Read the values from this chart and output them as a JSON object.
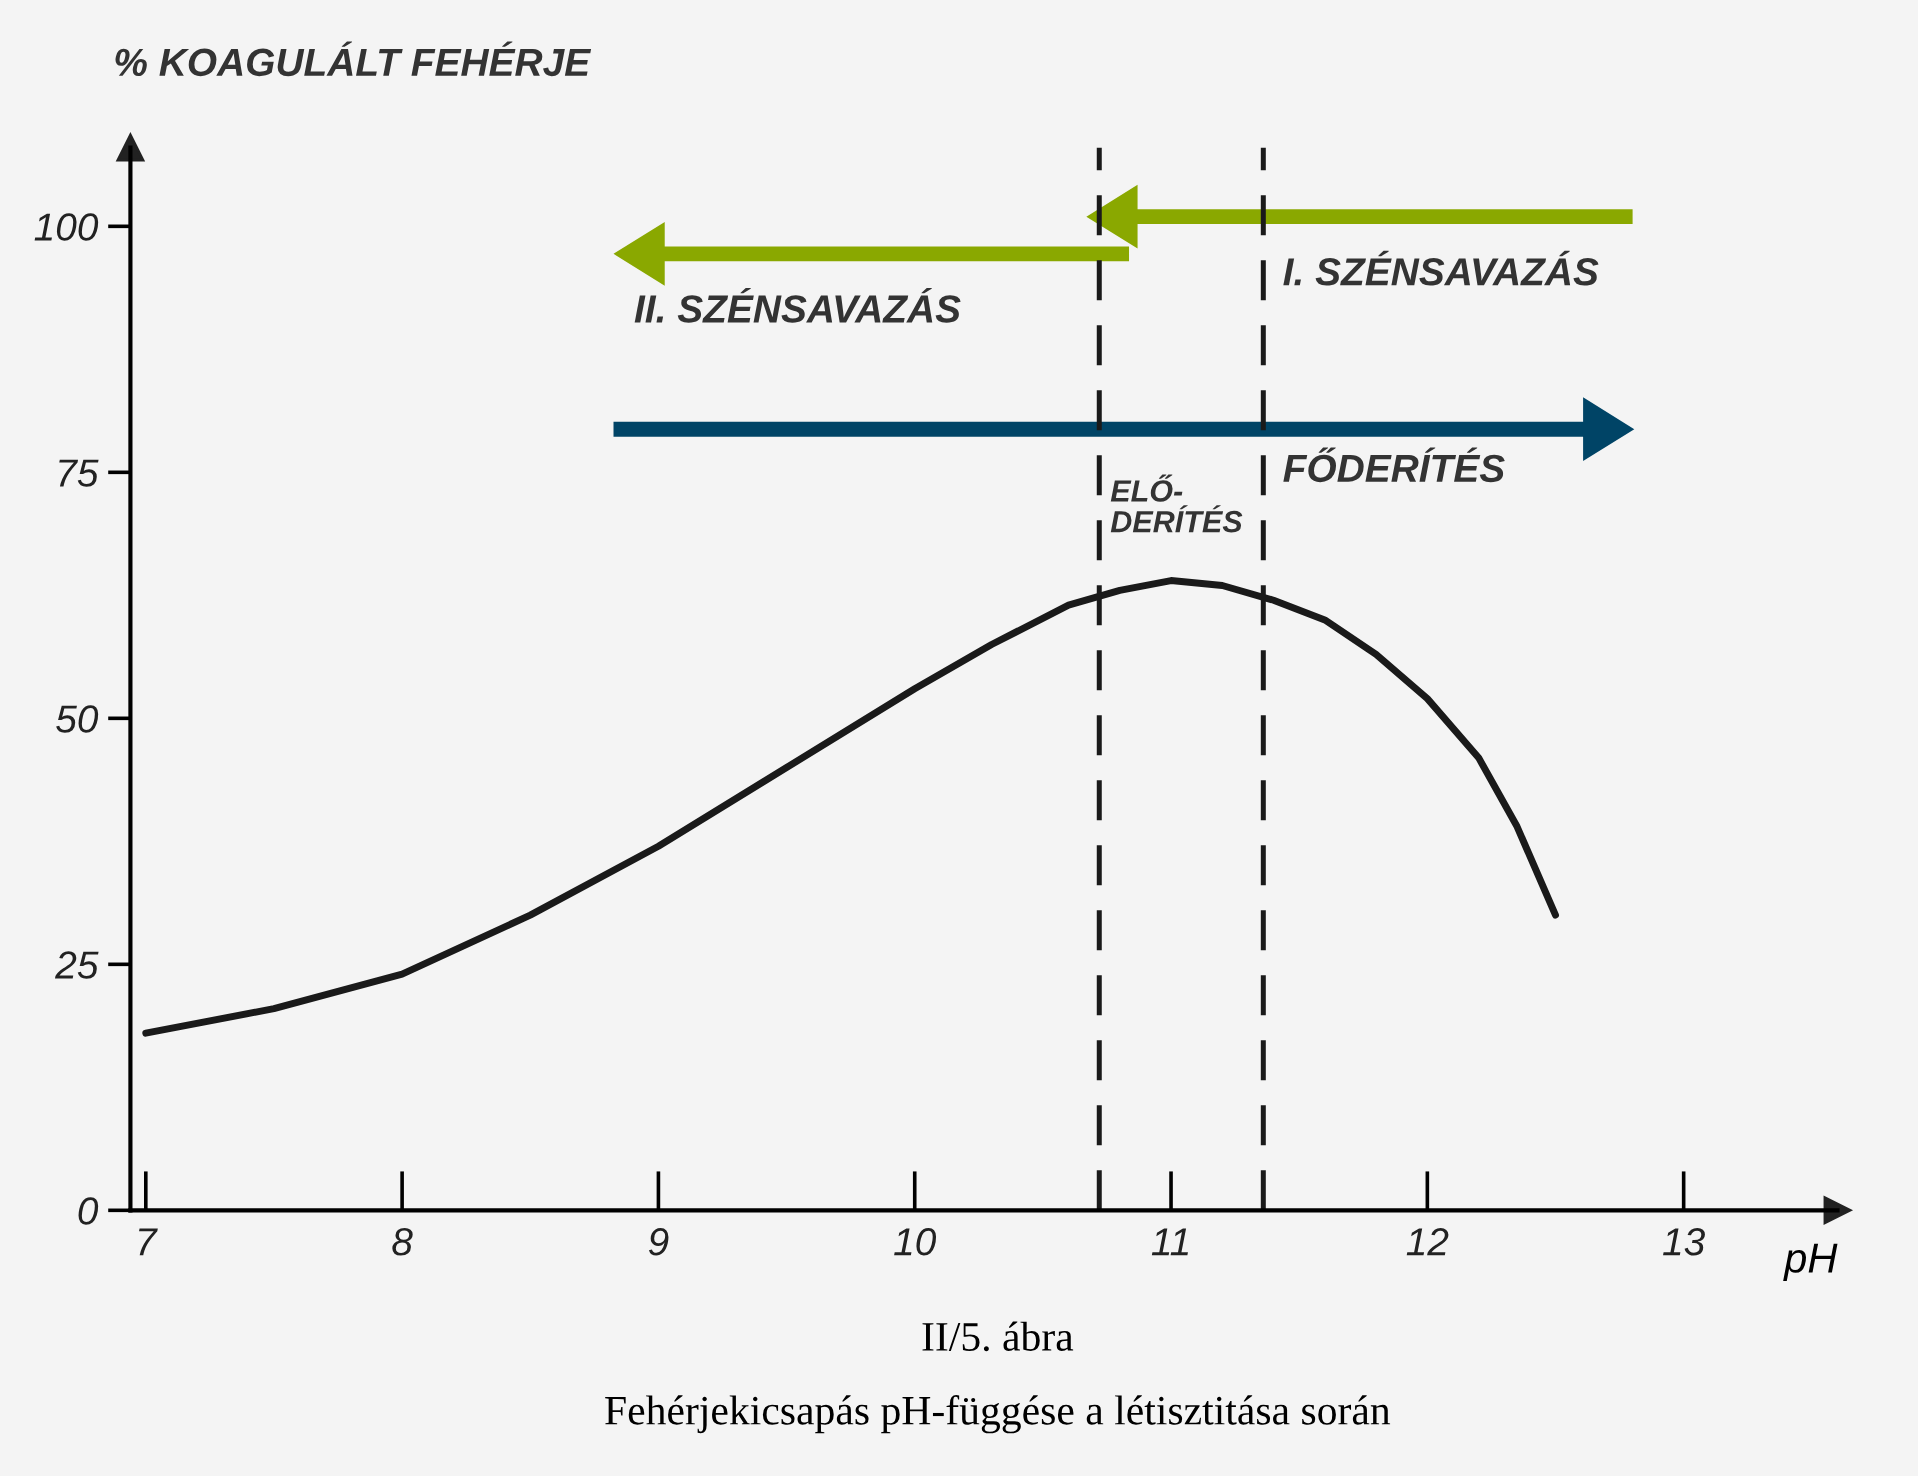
{
  "chart_data": {
    "type": "line",
    "title": "II/5. ábra",
    "subtitle": "Fehérjekicsapás pH-függése a létisztitása során",
    "xlabel": "pH",
    "ylabel": "% KOAGULÁLT FEHÉRJE",
    "x": [
      7,
      7.5,
      8,
      8.5,
      9,
      9.5,
      10,
      10.3,
      10.6,
      10.8,
      11,
      11.2,
      11.4,
      11.6,
      11.8,
      12,
      12.2,
      12.35,
      12.5
    ],
    "series": [
      {
        "color": "#1a1a1a",
        "values": [
          18,
          20.5,
          24,
          30,
          37,
          45,
          53,
          57.5,
          61.5,
          63,
          64,
          63.5,
          62,
          60,
          56.5,
          52,
          46,
          39,
          30
        ]
      }
    ],
    "xlim": [
      6.94,
      13.6
    ],
    "ylim": [
      0,
      108
    ],
    "xticks": [
      7,
      8,
      9,
      10,
      11,
      12,
      13
    ],
    "yticks": [
      0,
      25,
      50,
      75,
      100
    ],
    "ref_lines": [
      {
        "axis": "x",
        "value": 10.72,
        "label": null,
        "color": "#1a1a1a",
        "line_style": "dashed"
      },
      {
        "axis": "x",
        "value": 11.36,
        "label": null,
        "color": "#1a1a1a",
        "line_style": "dashed"
      }
    ],
    "annotations": [
      "II. SZÉNSAVAZÁS",
      "I. SZÉNSAVAZÁS",
      "ELŐ-\nDERÍTÉS",
      "FŐDERÍTÉS"
    ],
    "grid": false,
    "marker": "none",
    "line_style": "solid"
  }
}
